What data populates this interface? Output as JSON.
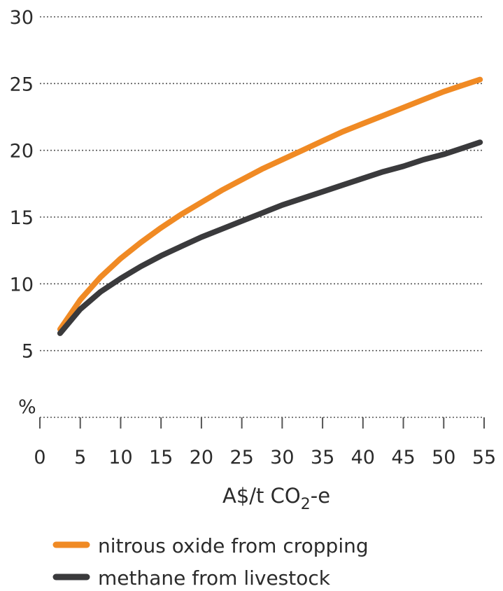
{
  "chart_data": {
    "type": "line",
    "title": "",
    "ylabel": "%",
    "xlabel_main": "A$/t CO",
    "xlabel_sub": "2",
    "xlabel_suffix": "-e",
    "xlim": [
      0,
      55
    ],
    "ylim": [
      0,
      30
    ],
    "x_ticks": [
      0,
      5,
      10,
      15,
      20,
      25,
      30,
      35,
      40,
      45,
      50,
      55
    ],
    "y_ticks": [
      5,
      10,
      15,
      20,
      25,
      30
    ],
    "grid": true,
    "legend_position": "bottom-left",
    "series": [
      {
        "name": "nitrous oxide from cropping",
        "color": "#f08a24",
        "x": [
          2.5,
          5,
          7.5,
          10,
          12.5,
          15,
          17.5,
          20,
          22.5,
          25,
          27.5,
          30,
          32.5,
          35,
          37.5,
          40,
          42.5,
          45,
          47.5,
          50,
          52.5,
          54.5
        ],
        "y": [
          6.6,
          8.8,
          10.5,
          11.9,
          13.1,
          14.2,
          15.2,
          16.1,
          17.0,
          17.8,
          18.6,
          19.3,
          20.0,
          20.7,
          21.4,
          22.0,
          22.6,
          23.2,
          23.8,
          24.4,
          24.9,
          25.3
        ]
      },
      {
        "name": "methane from livestock",
        "color": "#3a3a3c",
        "x": [
          2.5,
          5,
          7.5,
          10,
          12.5,
          15,
          17.5,
          20,
          22.5,
          25,
          27.5,
          30,
          32.5,
          35,
          37.5,
          40,
          42.5,
          45,
          47.5,
          50,
          52.5,
          54.5
        ],
        "y": [
          6.3,
          8.1,
          9.4,
          10.4,
          11.3,
          12.1,
          12.8,
          13.5,
          14.1,
          14.7,
          15.3,
          15.9,
          16.4,
          16.9,
          17.4,
          17.9,
          18.4,
          18.8,
          19.3,
          19.7,
          20.2,
          20.6
        ]
      }
    ]
  }
}
